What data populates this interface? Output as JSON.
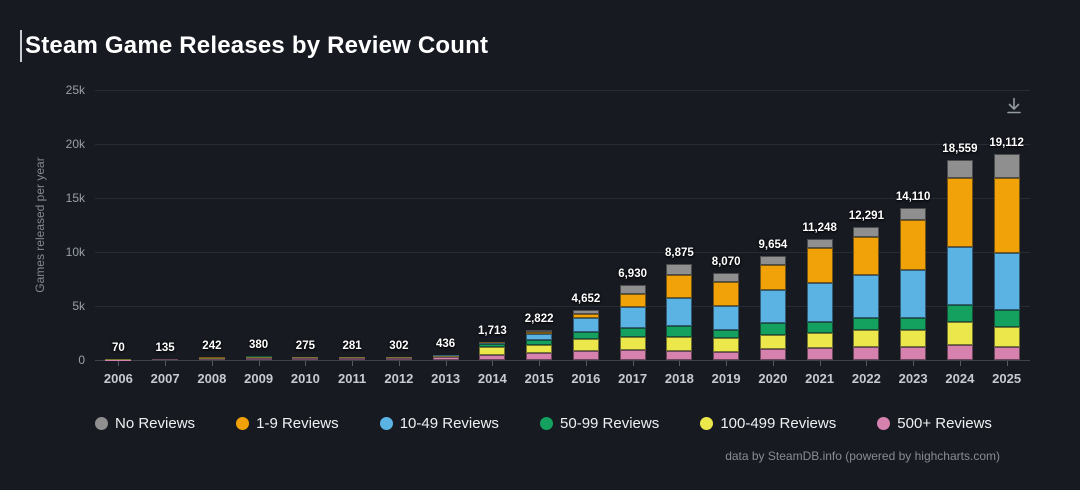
{
  "page": {
    "title": "Steam Game Releases by Review Count"
  },
  "chart_data": {
    "type": "bar",
    "stacked": true,
    "title": "Steam Game Releases by Review Count",
    "xlabel": "",
    "ylabel": "Games released per year",
    "ylim": [
      0,
      25000
    ],
    "yticks": [
      {
        "value": 0,
        "label": "0"
      },
      {
        "value": 5000,
        "label": "5k"
      },
      {
        "value": 10000,
        "label": "10k"
      },
      {
        "value": 15000,
        "label": "15k"
      },
      {
        "value": 20000,
        "label": "20k"
      },
      {
        "value": 25000,
        "label": "25k"
      }
    ],
    "grid": true,
    "legend_position": "bottom",
    "categories": [
      "2006",
      "2007",
      "2008",
      "2009",
      "2010",
      "2011",
      "2012",
      "2013",
      "2014",
      "2015",
      "2016",
      "2017",
      "2018",
      "2019",
      "2020",
      "2021",
      "2022",
      "2023",
      "2024",
      "2025"
    ],
    "totals": [
      70,
      135,
      242,
      380,
      275,
      281,
      302,
      436,
      1713,
      2822,
      4652,
      6930,
      8875,
      8070,
      9654,
      11248,
      12291,
      14110,
      18559,
      19112
    ],
    "total_labels": [
      "70",
      "135",
      "242",
      "380",
      "275",
      "281",
      "302",
      "436",
      "1,713",
      "2,822",
      "4,652",
      "6,930",
      "8,875",
      "8,070",
      "9,654",
      "11,248",
      "12,291",
      "14,110",
      "18,559",
      "19,112"
    ],
    "series": [
      {
        "name": "500+ Reviews",
        "color": "#d781ae",
        "values": [
          40,
          75,
          130,
          210,
          150,
          155,
          165,
          240,
          500,
          640,
          850,
          930,
          870,
          780,
          1020,
          1080,
          1240,
          1240,
          1390,
          1230
        ]
      },
      {
        "name": "100-499 Reviews",
        "color": "#ece84c",
        "values": [
          20,
          40,
          75,
          110,
          85,
          85,
          92,
          130,
          660,
          760,
          1060,
          1180,
          1300,
          1240,
          1310,
          1390,
          1550,
          1550,
          2160,
          1850
        ]
      },
      {
        "name": "50-99 Reviews",
        "color": "#14a05f",
        "values": [
          4,
          8,
          15,
          25,
          18,
          18,
          20,
          30,
          280,
          420,
          660,
          840,
          990,
          780,
          1080,
          1080,
          1080,
          1080,
          1540,
          1540
        ]
      },
      {
        "name": "10-49 Reviews",
        "color": "#5bb3e4",
        "values": [
          4,
          8,
          15,
          25,
          15,
          16,
          18,
          28,
          160,
          620,
          1300,
          1990,
          2560,
          2160,
          3090,
          3560,
          4010,
          4480,
          5400,
          5250
        ]
      },
      {
        "name": "1-9 Reviews",
        "color": "#f1a208",
        "values": [
          1,
          2,
          4,
          6,
          4,
          4,
          4,
          5,
          60,
          170,
          350,
          1160,
          2130,
          2290,
          2340,
          3270,
          3480,
          4620,
          6390,
          6960
        ]
      },
      {
        "name": "No Reviews",
        "color": "#8f8f8f",
        "values": [
          1,
          2,
          3,
          4,
          3,
          3,
          3,
          3,
          53,
          212,
          432,
          830,
          1025,
          820,
          814,
          868,
          931,
          1140,
          1679,
          2282
        ]
      }
    ],
    "legend": [
      {
        "label": "No Reviews",
        "color": "#8f8f8f"
      },
      {
        "label": "1-9 Reviews",
        "color": "#f1a208"
      },
      {
        "label": "10-49 Reviews",
        "color": "#5bb3e4"
      },
      {
        "label": "50-99 Reviews",
        "color": "#14a05f"
      },
      {
        "label": "100-499 Reviews",
        "color": "#ece84c"
      },
      {
        "label": "500+ Reviews",
        "color": "#d781ae"
      }
    ],
    "credits": "data by SteamDB.info (powered by highcharts.com)",
    "colors": {
      "background": "#171a21",
      "grid": "#272b33",
      "axis": "#3c4149",
      "title_text": "#ffffff",
      "tick_text": "#9aa0a7",
      "x_label_text": "#c7cbd1",
      "legend_text": "#eef0f2",
      "credits_text": "#878d94"
    }
  }
}
